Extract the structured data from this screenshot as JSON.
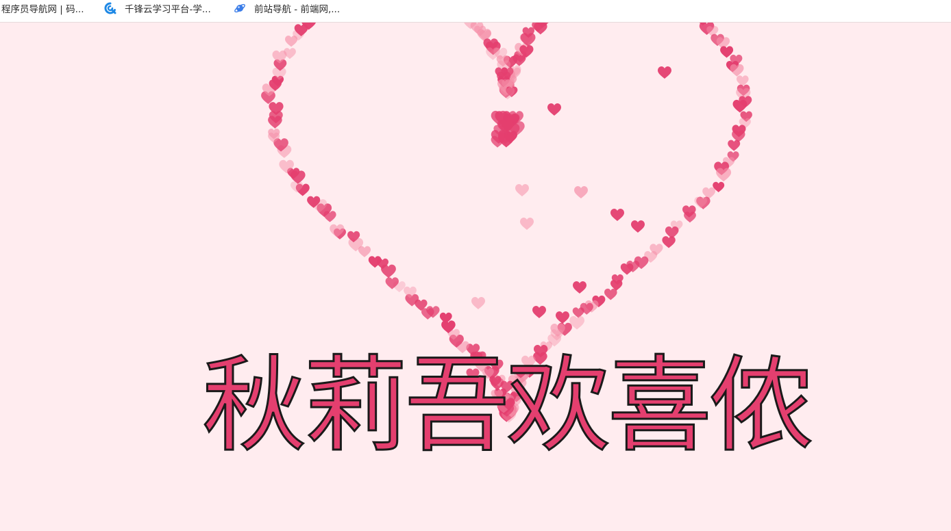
{
  "bookmarks": [
    {
      "label": "程序员导航网 | 码...",
      "icon": "none"
    },
    {
      "label": "千锋云学习平台-学...",
      "icon": "qianfeng-logo-icon"
    },
    {
      "label": "前站导航 - 前端网,...",
      "icon": "planet-icon"
    }
  ],
  "page": {
    "headline": "秋莉吾欢喜侬"
  },
  "colors": {
    "background": "#ffecef",
    "heart_main": "#e43f6f",
    "heart_light": "#f58fa8",
    "text_fill": "#e43f6f",
    "text_stroke": "#1a1a1a",
    "logo_blue": "#1e88e5",
    "planet_blue": "#3b7de8"
  }
}
